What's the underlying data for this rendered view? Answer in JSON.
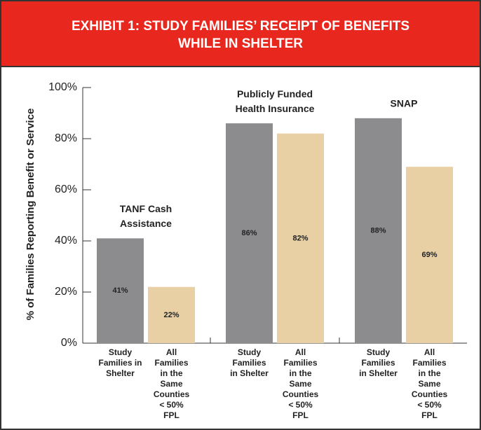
{
  "chart_data": {
    "type": "bar",
    "title": [
      "EXHIBIT 1: STUDY FAMILIES’ RECEIPT OF BENEFITS",
      "WHILE IN SHELTER"
    ],
    "y_label": "% of Families Reporting Benefit or Service",
    "ylim": [
      0,
      100
    ],
    "yticks": [
      {
        "value": 0,
        "label": "0%"
      },
      {
        "value": 20,
        "label": "20%"
      },
      {
        "value": 40,
        "label": "40%"
      },
      {
        "value": 60,
        "label": "60%"
      },
      {
        "value": 80,
        "label": "80%"
      },
      {
        "value": 100,
        "label": "100%"
      }
    ],
    "groups": [
      {
        "label": [
          "TANF Cash",
          "Assistance"
        ],
        "bar_labels": [
          [
            "Study",
            "Families in",
            "Shelter"
          ],
          [
            "All",
            "Families",
            "in the",
            "Same",
            "Counties",
            "< 50%",
            "FPL"
          ]
        ]
      },
      {
        "label": [
          "Publicly Funded",
          "Health Insurance"
        ],
        "bar_labels": [
          [
            "Study",
            "Families",
            "in Shelter"
          ],
          [
            "All",
            "Families",
            "in the",
            "Same",
            "Counties",
            "< 50%",
            "FPL"
          ]
        ]
      },
      {
        "label": [
          "SNAP"
        ],
        "bar_labels": [
          [
            "Study",
            "Families",
            "in Shelter"
          ],
          [
            "All",
            "Families",
            "in the",
            "Same",
            "Counties",
            "< 50%",
            "FPL"
          ]
        ]
      }
    ],
    "series": [
      {
        "color": "#8c8c8e",
        "values": [
          41,
          86,
          88
        ],
        "value_labels": [
          "41%",
          "86%",
          "88%"
        ]
      },
      {
        "color": "#e8d0a4",
        "values": [
          22,
          82,
          69
        ],
        "value_labels": [
          "22%",
          "82%",
          "69%"
        ]
      }
    ]
  }
}
